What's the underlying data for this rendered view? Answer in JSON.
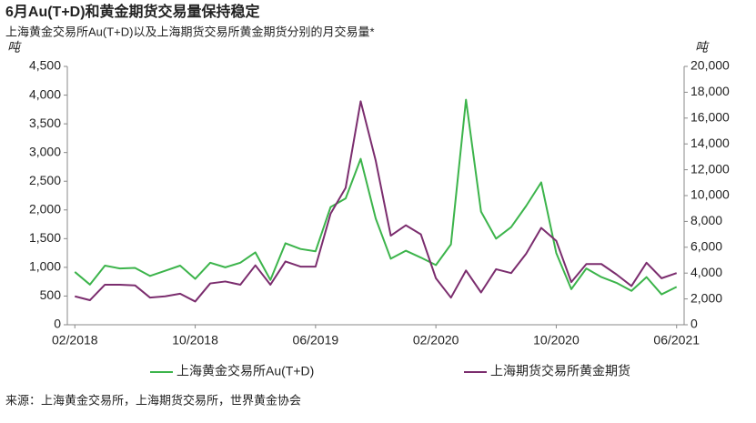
{
  "chart_data": {
    "type": "line",
    "title": "6月Au(T+D)和黄金期货交易量保持稳定",
    "subtitle": "上海黄金交易所Au(T+D)以及上海期货交易所黄金期货分别的月交易量*",
    "y_label": "吨",
    "y2_label": "吨",
    "source": "来源：上海黄金交易所，上海期货交易所，世界黄金协会",
    "categories": [
      "02/2018",
      null,
      null,
      null,
      null,
      null,
      null,
      null,
      "10/2018",
      null,
      null,
      null,
      null,
      null,
      null,
      null,
      "06/2019",
      null,
      null,
      null,
      null,
      null,
      null,
      null,
      "02/2020",
      null,
      null,
      null,
      null,
      null,
      null,
      null,
      "10/2020",
      null,
      null,
      null,
      null,
      null,
      null,
      null,
      "06/2021"
    ],
    "series": [
      {
        "name": "上海黄金交易所Au(T+D)",
        "color": "#3cb44b",
        "axis": "y",
        "values": [
          920,
          700,
          1030,
          980,
          990,
          850,
          940,
          1030,
          800,
          1080,
          1000,
          1080,
          1260,
          780,
          1420,
          1320,
          1280,
          2050,
          2200,
          2890,
          1850,
          1150,
          1290,
          1170,
          1040,
          1400,
          3920,
          1970,
          1500,
          1700,
          2070,
          2480,
          1250,
          620,
          980,
          830,
          730,
          590,
          830,
          530,
          660
        ]
      },
      {
        "name": "上海期货交易所黄金期货",
        "color": "#7b2d6e",
        "axis": "y2",
        "values": [
          2200,
          1900,
          3100,
          3100,
          3050,
          2100,
          2200,
          2400,
          1800,
          3200,
          3350,
          3100,
          4600,
          3100,
          4900,
          4500,
          4500,
          8600,
          10600,
          17300,
          12700,
          6900,
          7700,
          7000,
          3600,
          2100,
          4200,
          2500,
          4300,
          4000,
          5500,
          7500,
          6500,
          3300,
          4700,
          4700,
          3900,
          3000,
          4800,
          3600,
          4000
        ]
      }
    ],
    "ylim": [
      0,
      4500
    ],
    "yticks": [
      0,
      500,
      {
        "value": 1000,
        "label": "1,000"
      },
      {
        "value": 1500,
        "label": "1,500"
      },
      {
        "value": 2000,
        "label": "2,000"
      },
      {
        "value": 2500,
        "label": "2,500"
      },
      {
        "value": 3000,
        "label": "3,000"
      },
      {
        "value": 3500,
        "label": "3,500"
      },
      {
        "value": 4000,
        "label": "4,000"
      },
      {
        "value": 4500,
        "label": "4,500"
      }
    ],
    "y2lim": [
      0,
      20000
    ],
    "y2ticks": [
      0,
      {
        "value": 2000,
        "label": "2,000"
      },
      {
        "value": 4000,
        "label": "4,000"
      },
      {
        "value": 6000,
        "label": "6,000"
      },
      {
        "value": 8000,
        "label": "8,000"
      },
      {
        "value": 10000,
        "label": "10,000"
      },
      {
        "value": 12000,
        "label": "12,000"
      },
      {
        "value": 14000,
        "label": "14,000"
      },
      {
        "value": 16000,
        "label": "16,000"
      },
      {
        "value": 18000,
        "label": "18,000"
      },
      {
        "value": 20000,
        "label": "20,000"
      }
    ],
    "grid": false
  }
}
